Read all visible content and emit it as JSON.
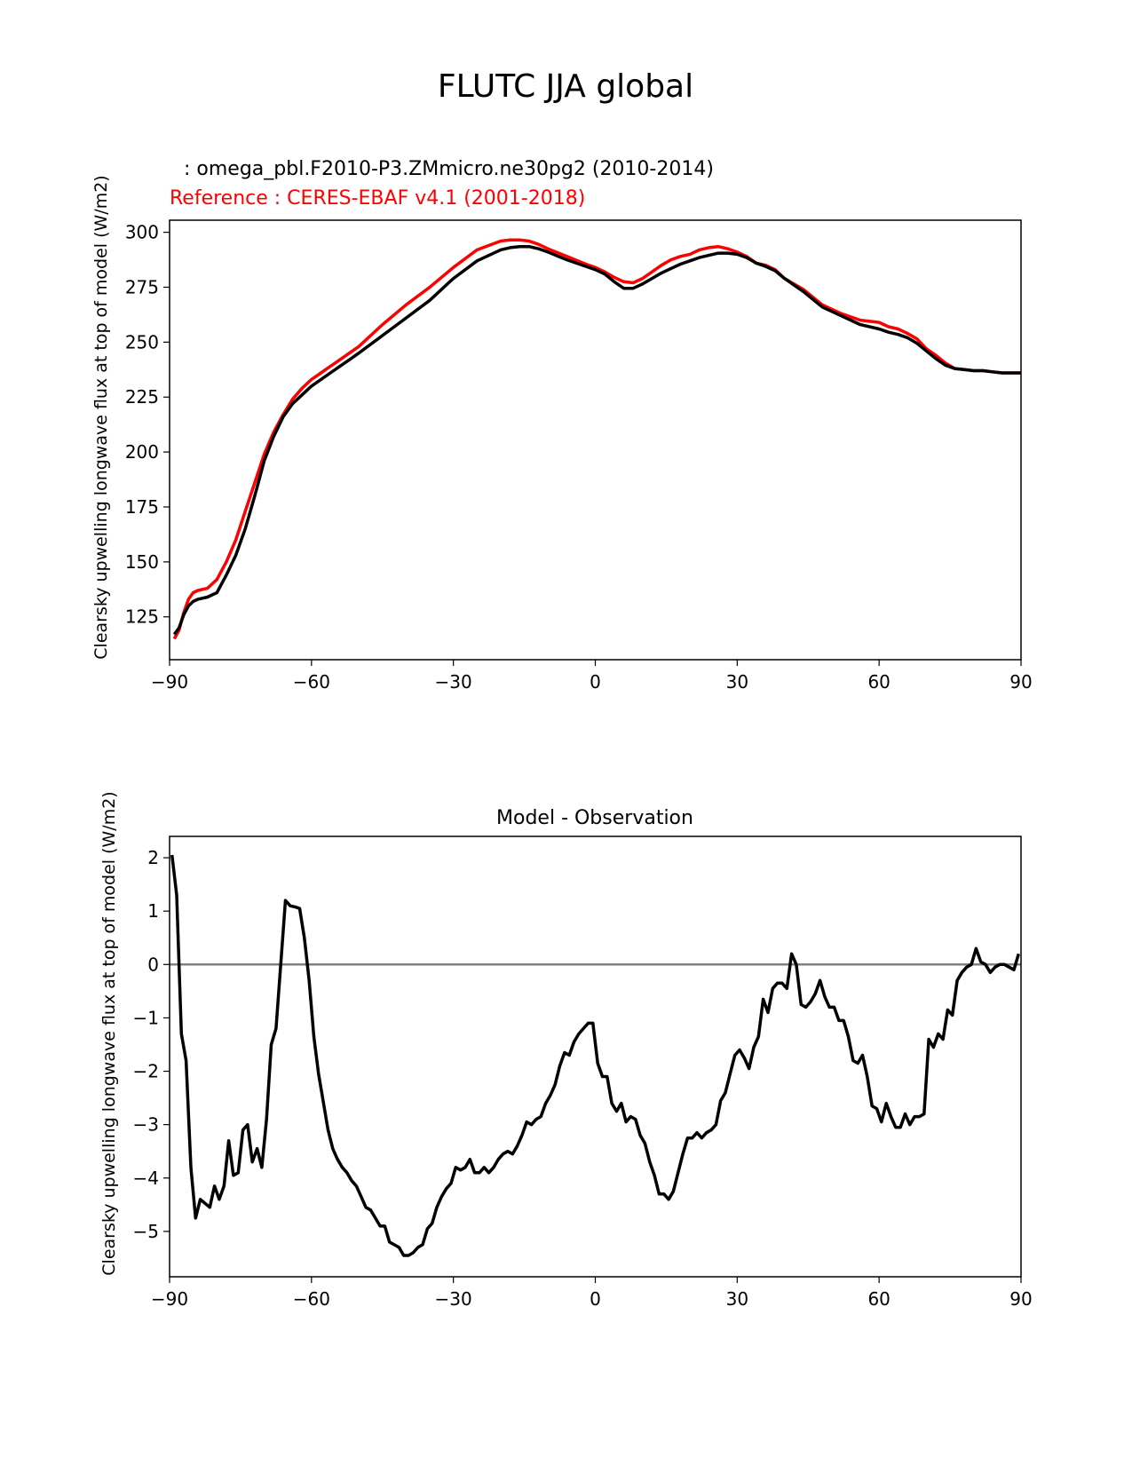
{
  "figure_title": "FLUTC JJA global",
  "chart_data": [
    {
      "type": "line",
      "test_label": " : omega_pbl.F2010-P3.ZMmicro.ne30pg2 (2010-2014)",
      "reference_label": "Reference : CERES-EBAF v4.1 (2001-2018)",
      "title": "",
      "xlabel": "",
      "ylabel": "Clearsky upwelling longwave flux at top of model (W/m2)",
      "xlim": [
        -90,
        90
      ],
      "ylim": [
        105.5,
        305.5
      ],
      "xticks": [
        -90,
        -60,
        -30,
        0,
        30,
        60,
        90
      ],
      "xtick_labels": [
        "−90",
        "−60",
        "−30",
        "0",
        "30",
        "60",
        "90"
      ],
      "yticks": [
        125,
        150,
        175,
        200,
        225,
        250,
        275,
        300
      ],
      "ytick_labels": [
        "125",
        "150",
        "175",
        "200",
        "225",
        "250",
        "275",
        "300"
      ],
      "series": [
        {
          "name": "Reference",
          "color": "#ff0000",
          "x": [
            -89,
            -88,
            -87,
            -86,
            -85,
            -84,
            -82,
            -80,
            -78,
            -76,
            -74,
            -72,
            -70,
            -68,
            -66,
            -64,
            -62,
            -60,
            -58,
            -56,
            -54,
            -52,
            -50,
            -45,
            -40,
            -35,
            -30,
            -25,
            -20,
            -18,
            -16,
            -14,
            -12,
            -10,
            -6,
            -2,
            0,
            2,
            4,
            6,
            8,
            10,
            12,
            14,
            16,
            18,
            20,
            22,
            24,
            26,
            28,
            30,
            32,
            34,
            36,
            38,
            40,
            44,
            48,
            52,
            56,
            60,
            62,
            64,
            66,
            68,
            70,
            72,
            74,
            76,
            78,
            80,
            82,
            84,
            86,
            88,
            90
          ],
          "values": [
            115,
            119,
            127,
            133,
            136,
            137,
            138,
            142,
            150,
            160,
            173,
            186,
            199,
            209,
            217,
            224,
            229,
            233,
            236,
            239,
            242,
            245,
            248,
            258,
            267,
            275,
            284,
            292,
            296,
            296.5,
            296.5,
            296,
            294.5,
            292.5,
            289,
            285.5,
            284,
            282,
            279.5,
            277.5,
            277,
            279,
            282,
            285,
            287.5,
            289,
            290,
            292,
            293,
            293.5,
            292.5,
            291,
            289,
            286,
            285,
            283,
            279,
            274,
            267,
            263,
            260,
            259,
            257,
            256,
            254,
            251.5,
            247,
            244,
            240.5,
            238,
            237.5,
            237,
            237,
            236.5,
            236,
            236,
            236
          ]
        },
        {
          "name": "Test",
          "color": "#000000",
          "x": [
            -89,
            -88,
            -87,
            -86,
            -85,
            -84,
            -82,
            -80,
            -78,
            -76,
            -74,
            -72,
            -70,
            -68,
            -66,
            -64,
            -62,
            -60,
            -58,
            -56,
            -54,
            -52,
            -50,
            -45,
            -40,
            -35,
            -30,
            -25,
            -20,
            -18,
            -16,
            -14,
            -12,
            -10,
            -6,
            -2,
            0,
            2,
            4,
            6,
            8,
            10,
            12,
            14,
            16,
            18,
            20,
            22,
            24,
            26,
            28,
            30,
            32,
            34,
            36,
            38,
            40,
            44,
            48,
            52,
            56,
            60,
            62,
            64,
            66,
            68,
            70,
            72,
            74,
            76,
            78,
            80,
            82,
            84,
            86,
            88,
            90
          ],
          "values": [
            117,
            120,
            126,
            130,
            132,
            133,
            134,
            136,
            144,
            153,
            165,
            180,
            196,
            207,
            216,
            222,
            226,
            230,
            233,
            236,
            239,
            242,
            245,
            253,
            261,
            269,
            279,
            287,
            292,
            293,
            293.5,
            293.5,
            292.5,
            291,
            287.5,
            284.5,
            283,
            281,
            277.5,
            274.5,
            274.5,
            276.5,
            279,
            281.5,
            283.5,
            285.5,
            287,
            288.5,
            289.5,
            290.5,
            290.5,
            290,
            288.5,
            286,
            284.5,
            282.5,
            279,
            273,
            266,
            262,
            258,
            256,
            254.5,
            253.5,
            252,
            249.5,
            246,
            242.5,
            239.5,
            238,
            237.5,
            237,
            237,
            236.5,
            236,
            236,
            236
          ]
        }
      ]
    },
    {
      "type": "line",
      "title": "Model - Observation",
      "xlabel": "",
      "ylabel": "Clearsky upwelling longwave flux at top of model (W/m2)",
      "xlim": [
        -90,
        90
      ],
      "ylim": [
        -5.85,
        2.4
      ],
      "xticks": [
        -90,
        -60,
        -30,
        0,
        30,
        60,
        90
      ],
      "xtick_labels": [
        "−90",
        "−60",
        "−30",
        "0",
        "30",
        "60",
        "90"
      ],
      "yticks": [
        -5,
        -4,
        -3,
        -2,
        -1,
        0,
        1,
        2
      ],
      "ytick_labels": [
        "−5",
        "−4",
        "−3",
        "−2",
        "−1",
        "0",
        "1",
        "2"
      ],
      "zero_line_color": "#808080",
      "series": [
        {
          "name": "Difference",
          "color": "#000000",
          "x": [
            -89.5,
            -88.5,
            -87.5,
            -86.5,
            -85.5,
            -84.5,
            -83.5,
            -81.5,
            -80.5,
            -79.5,
            -78.5,
            -77.5,
            -76.5,
            -75.5,
            -74.5,
            -73.5,
            -72.5,
            -71.5,
            -70.5,
            -69.5,
            -68.5,
            -67.5,
            -66.5,
            -65.5,
            -64.5,
            -63.5,
            -62.5,
            -61.5,
            -60.5,
            -59.5,
            -58.5,
            -56.5,
            -55.5,
            -54.5,
            -53.5,
            -52.5,
            -51.5,
            -50.5,
            -49.5,
            -48.5,
            -47.5,
            -46.5,
            -45.5,
            -44.5,
            -43.5,
            -42.5,
            -41.5,
            -40.5,
            -39.5,
            -38.5,
            -37.5,
            -36.5,
            -35.5,
            -34.5,
            -33.5,
            -32.5,
            -31.5,
            -30.5,
            -29.5,
            -28.5,
            -27.5,
            -26.5,
            -25.5,
            -24.5,
            -23.5,
            -22.5,
            -21.5,
            -20.5,
            -19.5,
            -18.5,
            -17.5,
            -16.5,
            -15.5,
            -14.5,
            -13.5,
            -12.5,
            -11.5,
            -10.5,
            -9.5,
            -8.5,
            -7.5,
            -6.5,
            -5.5,
            -4.5,
            -3.5,
            -2.5,
            -1.5,
            -0.5,
            0.5,
            1.5,
            2.5,
            3.5,
            4.5,
            5.5,
            6.5,
            7.5,
            8.5,
            9.5,
            10.5,
            11.5,
            12.5,
            13.5,
            14.5,
            15.5,
            16.5,
            17.5,
            18.5,
            19.5,
            20.5,
            21.5,
            22.5,
            23.5,
            24.5,
            25.5,
            26.5,
            27.5,
            28.5,
            29.5,
            30.5,
            31.5,
            32.5,
            33.5,
            34.5,
            35.5,
            36.5,
            37.5,
            38.5,
            39.5,
            40.5,
            41.5,
            42.5,
            43.5,
            44.5,
            45.5,
            46.5,
            47.5,
            48.5,
            49.5,
            50.5,
            51.5,
            52.5,
            53.5,
            54.5,
            55.5,
            56.5,
            57.5,
            58.5,
            59.5,
            60.5,
            61.5,
            62.5,
            63.5,
            64.5,
            65.5,
            66.5,
            67.5,
            68.5,
            69.5,
            70.5,
            71.5,
            72.5,
            73.5,
            74.5,
            75.5,
            76.5,
            77.5,
            78.5,
            79.5,
            80.5,
            81.5,
            82.5,
            83.5,
            84.5,
            85.5,
            86.5,
            87.5,
            88.5,
            89.5
          ],
          "values": [
            2.05,
            1.3,
            -1.3,
            -1.8,
            -3.8,
            -4.75,
            -4.4,
            -4.55,
            -4.15,
            -4.4,
            -4.15,
            -3.3,
            -3.95,
            -3.9,
            -3.1,
            -3.0,
            -3.7,
            -3.45,
            -3.8,
            -2.9,
            -1.5,
            -1.2,
            0.0,
            1.2,
            1.1,
            1.08,
            1.05,
            0.5,
            -0.3,
            -1.35,
            -2.05,
            -3.1,
            -3.45,
            -3.65,
            -3.8,
            -3.9,
            -4.05,
            -4.15,
            -4.35,
            -4.55,
            -4.6,
            -4.75,
            -4.9,
            -4.9,
            -5.2,
            -5.25,
            -5.3,
            -5.45,
            -5.45,
            -5.4,
            -5.3,
            -5.25,
            -4.95,
            -4.85,
            -4.55,
            -4.35,
            -4.2,
            -4.1,
            -3.8,
            -3.85,
            -3.8,
            -3.65,
            -3.9,
            -3.9,
            -3.8,
            -3.9,
            -3.8,
            -3.65,
            -3.55,
            -3.5,
            -3.55,
            -3.4,
            -3.2,
            -2.95,
            -3.0,
            -2.9,
            -2.85,
            -2.6,
            -2.45,
            -2.25,
            -1.9,
            -1.65,
            -1.7,
            -1.45,
            -1.3,
            -1.2,
            -1.1,
            -1.1,
            -1.85,
            -2.1,
            -2.1,
            -2.6,
            -2.75,
            -2.6,
            -2.95,
            -2.85,
            -2.9,
            -3.2,
            -3.35,
            -3.7,
            -3.95,
            -4.3,
            -4.3,
            -4.4,
            -4.25,
            -3.9,
            -3.55,
            -3.25,
            -3.25,
            -3.15,
            -3.25,
            -3.15,
            -3.1,
            -3.0,
            -2.55,
            -2.4,
            -2.05,
            -1.7,
            -1.6,
            -1.75,
            -1.95,
            -1.55,
            -1.35,
            -0.65,
            -0.9,
            -0.45,
            -0.35,
            -0.35,
            -0.45,
            0.2,
            0.0,
            -0.75,
            -0.8,
            -0.7,
            -0.55,
            -0.3,
            -0.6,
            -0.8,
            -0.8,
            -1.05,
            -1.05,
            -1.35,
            -1.8,
            -1.85,
            -1.7,
            -2.1,
            -2.65,
            -2.7,
            -2.95,
            -2.6,
            -2.85,
            -3.05,
            -3.05,
            -2.8,
            -3.0,
            -2.85,
            -2.85,
            -2.8,
            -1.4,
            -1.55,
            -1.3,
            -1.4,
            -0.85,
            -0.95,
            -0.3,
            -0.15,
            -0.05,
            0.0,
            0.3,
            0.05,
            0.0,
            -0.15,
            -0.05,
            0.0,
            0.0,
            -0.05,
            -0.1,
            0.2
          ]
        }
      ]
    }
  ]
}
